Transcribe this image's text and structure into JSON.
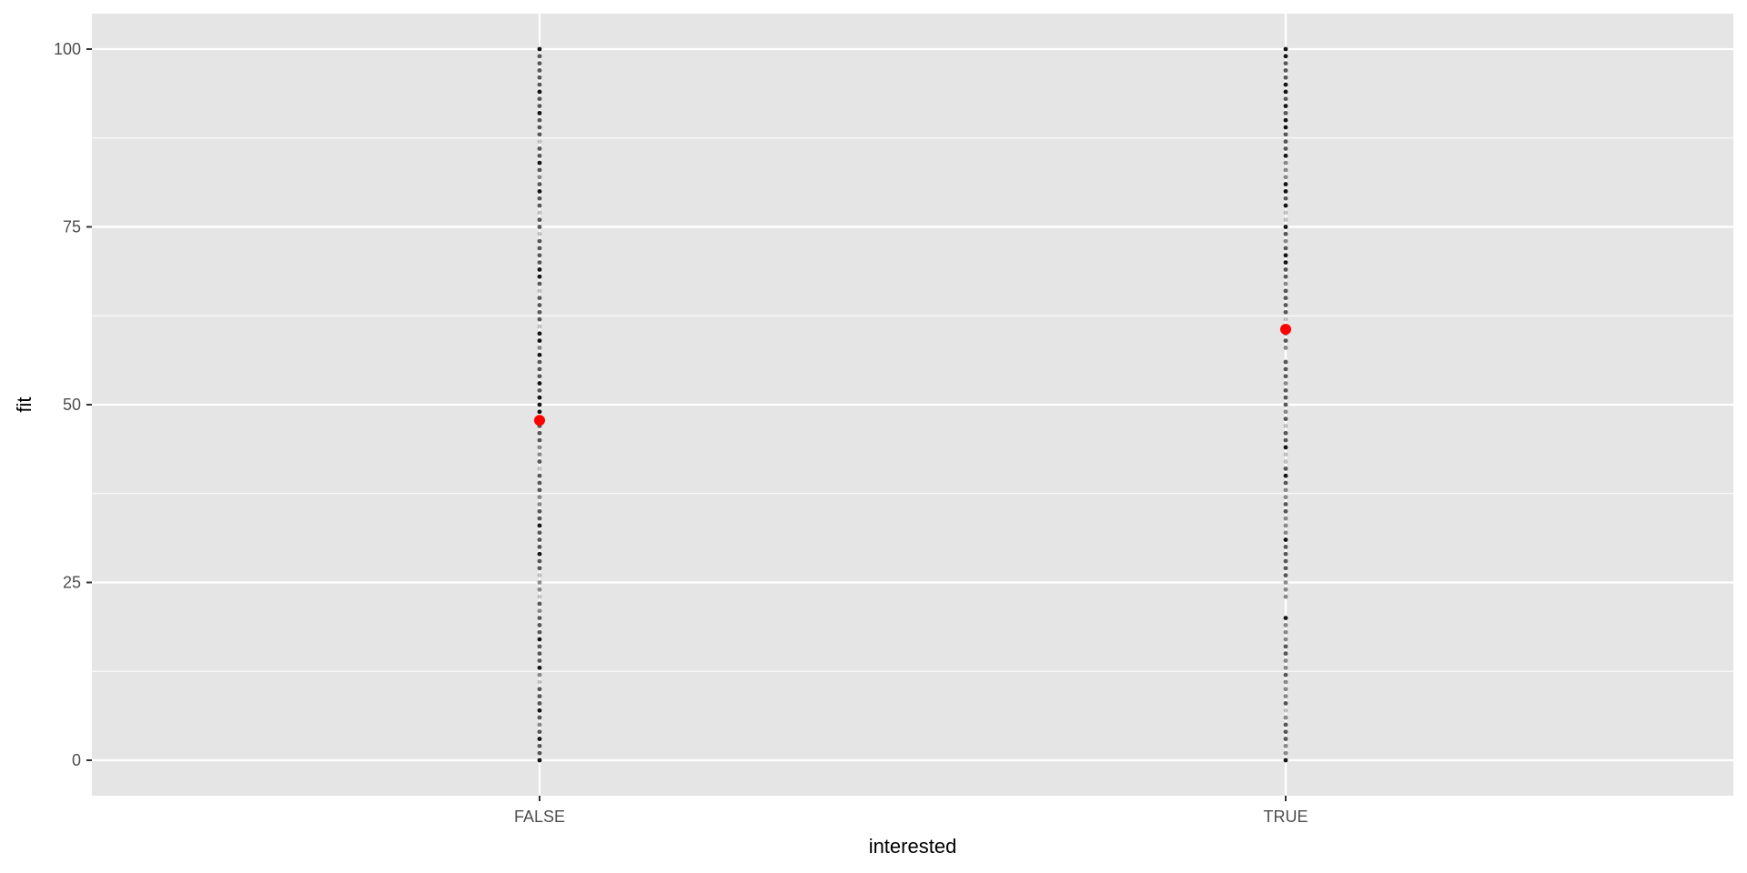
{
  "chart_data": {
    "type": "scatter",
    "title": "",
    "xlabel": "interested",
    "ylabel": "fit",
    "categories": [
      "FALSE",
      "TRUE"
    ],
    "ylim": [
      -5,
      105
    ],
    "yticks": [
      "0",
      "25",
      "50",
      "75",
      "100"
    ],
    "grid": true,
    "colors": {
      "panel": "#e5e5e5",
      "grid": "#ffffff",
      "points": "#000000",
      "mean": "#ff0000"
    },
    "series": [
      {
        "category": "FALSE",
        "values": [
          0,
          1,
          2,
          3,
          4,
          5,
          6,
          7,
          8,
          9,
          10,
          11,
          12,
          13,
          14,
          15,
          16,
          17,
          18,
          19,
          20,
          21,
          22,
          23,
          24,
          25,
          26,
          27,
          28,
          29,
          30,
          31,
          32,
          33,
          34,
          35,
          36,
          37,
          38,
          39,
          40,
          41,
          42,
          43,
          44,
          45,
          46,
          47,
          48,
          49,
          50,
          51,
          52,
          53,
          54,
          55,
          56,
          57,
          58,
          59,
          60,
          61,
          62,
          63,
          64,
          65,
          66,
          67,
          68,
          69,
          70,
          71,
          72,
          73,
          74,
          75,
          76,
          77,
          78,
          79,
          80,
          81,
          82,
          83,
          84,
          85,
          86,
          87,
          88,
          89,
          90,
          91,
          92,
          93,
          94,
          95,
          96,
          97,
          98,
          99,
          100
        ],
        "shade_level": [
          4,
          3,
          3,
          4,
          3,
          2,
          3,
          4,
          3,
          3,
          3,
          1,
          2,
          4,
          3,
          3,
          3,
          4,
          3,
          3,
          3,
          2,
          3,
          1,
          2,
          2,
          1,
          3,
          3,
          4,
          3,
          3,
          3,
          4,
          3,
          3,
          2,
          2,
          3,
          3,
          3,
          1,
          3,
          2,
          2,
          3,
          3,
          3,
          3,
          4,
          4,
          4,
          3,
          4,
          3,
          3,
          3,
          4,
          2,
          4,
          4,
          1,
          3,
          3,
          3,
          3,
          1,
          3,
          4,
          4,
          3,
          3,
          3,
          3,
          1,
          3,
          3,
          1,
          3,
          3,
          4,
          3,
          2,
          3,
          4,
          3,
          3,
          1,
          3,
          3,
          3,
          4,
          3,
          3,
          4,
          3,
          3,
          3,
          3,
          3,
          4
        ],
        "mean": 47.8
      },
      {
        "category": "TRUE",
        "values": [
          0,
          1,
          2,
          3,
          4,
          5,
          6,
          7,
          8,
          9,
          10,
          11,
          12,
          13,
          14,
          15,
          16,
          17,
          18,
          19,
          20,
          23,
          24,
          25,
          26,
          27,
          28,
          29,
          30,
          31,
          32,
          33,
          34,
          35,
          36,
          37,
          38,
          39,
          40,
          41,
          42,
          43,
          44,
          45,
          46,
          47,
          48,
          49,
          50,
          51,
          52,
          53,
          54,
          55,
          56,
          58,
          59,
          60,
          61,
          62,
          63,
          64,
          65,
          66,
          67,
          68,
          69,
          70,
          71,
          72,
          73,
          74,
          75,
          76,
          77,
          78,
          79,
          80,
          81,
          82,
          83,
          84,
          85,
          86,
          87,
          88,
          89,
          90,
          91,
          92,
          93,
          94,
          95,
          96,
          97,
          98,
          99,
          100
        ],
        "shade_level": [
          4,
          2,
          2,
          3,
          3,
          3,
          2,
          1,
          3,
          2,
          2,
          2,
          3,
          2,
          2,
          3,
          3,
          2,
          2,
          2,
          4,
          2,
          2,
          2,
          3,
          3,
          3,
          3,
          3,
          4,
          2,
          2,
          2,
          3,
          3,
          2,
          2,
          3,
          4,
          3,
          1,
          1,
          4,
          3,
          3,
          1,
          3,
          2,
          3,
          3,
          3,
          2,
          3,
          3,
          3,
          2,
          3,
          2,
          2,
          1,
          3,
          3,
          3,
          3,
          2,
          3,
          3,
          4,
          4,
          3,
          2,
          3,
          4,
          1,
          1,
          4,
          3,
          4,
          4,
          2,
          2,
          2,
          4,
          3,
          3,
          3,
          4,
          4,
          3,
          4,
          3,
          4,
          4,
          3,
          3,
          3,
          4,
          4
        ],
        "mean": 60.6
      }
    ]
  }
}
